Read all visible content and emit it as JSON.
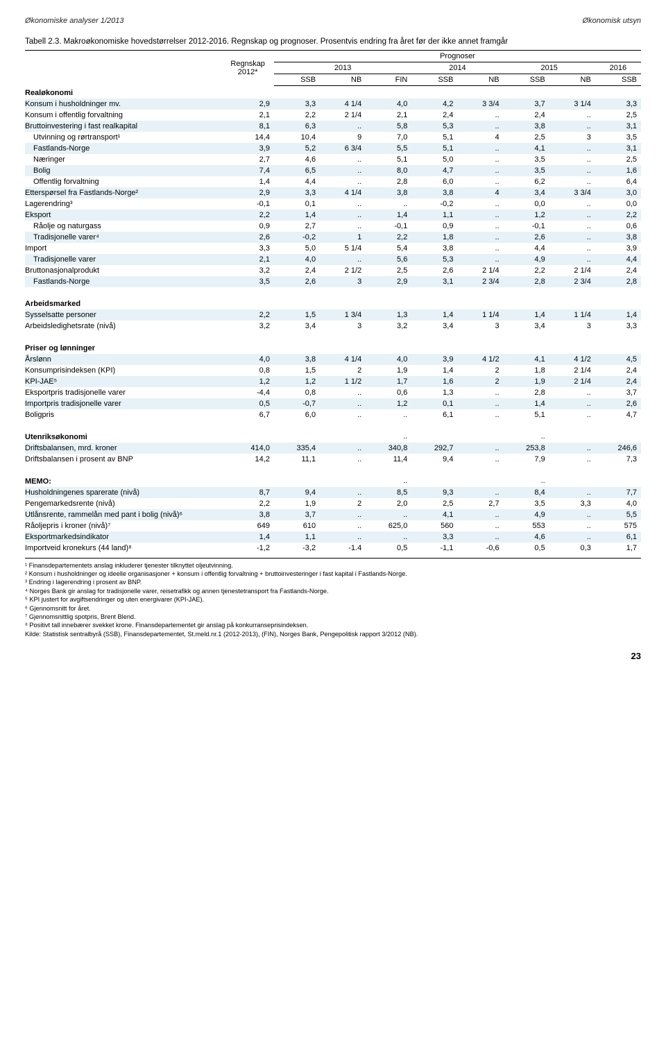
{
  "header": {
    "left": "Økonomiske analyser 1/2013",
    "right": "Økonomisk utsyn"
  },
  "caption": "Tabell 2.3. Makroøkonomiske hovedstørrelser 2012-2016. Regnskap og prognoser. Prosentvis endring fra året før der ikke annet framgår",
  "cols": {
    "regnskap": "Regnskap\n2012*",
    "prognoser": "Prognoser",
    "years": [
      "2013",
      "2014",
      "2015",
      "2016"
    ],
    "sub2013": [
      "SSB",
      "NB",
      "FIN"
    ],
    "sub2014": [
      "SSB",
      "NB"
    ],
    "sub2015": [
      "SSB",
      "NB"
    ],
    "sub2016": [
      "SSB"
    ]
  },
  "sections": [
    {
      "title": "Realøkonomi",
      "rows": [
        {
          "label": "Konsum i husholdninger mv.",
          "shade": true,
          "v": [
            "2,9",
            "3,3",
            "4 1/4",
            "4,0",
            "4,2",
            "3 3/4",
            "3,7",
            "3 1/4",
            "3,3"
          ]
        },
        {
          "label": "Konsum i offentlig forvaltning",
          "v": [
            "2,1",
            "2,2",
            "2 1/4",
            "2,1",
            "2,4",
            "..",
            "2,4",
            "..",
            "2,5"
          ]
        },
        {
          "label": "Bruttoinvestering i fast realkapital",
          "shade": true,
          "v": [
            "8,1",
            "6,3",
            "..",
            "5,8",
            "5,3",
            "..",
            "3,8",
            "..",
            "3,1"
          ]
        },
        {
          "label": "Utvinning og rørtransport¹",
          "indent": 1,
          "v": [
            "14,4",
            "10,4",
            "9",
            "7,0",
            "5,1",
            "4",
            "2,5",
            "3",
            "3,5"
          ]
        },
        {
          "label": "Fastlands-Norge",
          "indent": 1,
          "shade": true,
          "v": [
            "3,9",
            "5,2",
            "6 3/4",
            "5,5",
            "5,1",
            "..",
            "4,1",
            "..",
            "3,1"
          ]
        },
        {
          "label": "Næringer",
          "indent": 1,
          "v": [
            "2,7",
            "4,6",
            "..",
            "5,1",
            "5,0",
            "..",
            "3,5",
            "..",
            "2,5"
          ]
        },
        {
          "label": "Bolig",
          "indent": 1,
          "shade": true,
          "v": [
            "7,4",
            "6,5",
            "..",
            "8,0",
            "4,7",
            "..",
            "3,5",
            "..",
            "1,6"
          ]
        },
        {
          "label": "Offentlig forvaltning",
          "indent": 1,
          "v": [
            "1,4",
            "4,4",
            "..",
            "2,8",
            "6,0",
            "..",
            "6,2",
            "..",
            "6,4"
          ]
        },
        {
          "label": "Etterspørsel fra Fastlands-Norge²",
          "shade": true,
          "v": [
            "2,9",
            "3,3",
            "4 1/4",
            "3,8",
            "3,8",
            "4",
            "3,4",
            "3 3/4",
            "3,0"
          ]
        },
        {
          "label": "Lagerendring³",
          "v": [
            "-0,1",
            "0,1",
            "..",
            "..",
            "-0,2",
            "..",
            "0,0",
            "..",
            "0,0"
          ]
        },
        {
          "label": "Eksport",
          "shade": true,
          "v": [
            "2,2",
            "1,4",
            "..",
            "1,4",
            "1,1",
            "..",
            "1,2",
            "..",
            "2,2"
          ]
        },
        {
          "label": "Råolje og naturgass",
          "indent": 1,
          "v": [
            "0,9",
            "2,7",
            "..",
            "-0,1",
            "0,9",
            "..",
            "-0,1",
            "..",
            "0,6"
          ]
        },
        {
          "label": "Tradisjonelle varer⁴",
          "indent": 1,
          "shade": true,
          "v": [
            "2,6",
            "-0,2",
            "1",
            "2,2",
            "1,8",
            "..",
            "2,6",
            "..",
            "3,8"
          ]
        },
        {
          "label": "Import",
          "v": [
            "3,3",
            "5,0",
            "5 1/4",
            "5,4",
            "3,8",
            "..",
            "4,4",
            "..",
            "3,9"
          ]
        },
        {
          "label": "Tradisjonelle varer",
          "indent": 1,
          "shade": true,
          "v": [
            "2,1",
            "4,0",
            "..",
            "5,6",
            "5,3",
            "..",
            "4,9",
            "..",
            "4,4"
          ]
        },
        {
          "label": "Bruttonasjonalprodukt",
          "v": [
            "3,2",
            "2,4",
            "2 1/2",
            "2,5",
            "2,6",
            "2 1/4",
            "2,2",
            "2 1/4",
            "2,4"
          ]
        },
        {
          "label": "Fastlands-Norge",
          "indent": 1,
          "shade": true,
          "v": [
            "3,5",
            "2,6",
            "3",
            "2,9",
            "3,1",
            "2 3/4",
            "2,8",
            "2 3/4",
            "2,8"
          ]
        }
      ]
    },
    {
      "title": "Arbeidsmarked",
      "rows": [
        {
          "label": "Sysselsatte personer",
          "shade": true,
          "v": [
            "2,2",
            "1,5",
            "1 3/4",
            "1,3",
            "1,4",
            "1 1/4",
            "1,4",
            "1 1/4",
            "1,4"
          ]
        },
        {
          "label": "Arbeidsledighetsrate (nivå)",
          "v": [
            "3,2",
            "3,4",
            "3",
            "3,2",
            "3,4",
            "3",
            "3,4",
            "3",
            "3,3"
          ]
        }
      ]
    },
    {
      "title": "Priser og lønninger",
      "rows": [
        {
          "label": "Årslønn",
          "shade": true,
          "v": [
            "4,0",
            "3,8",
            "4 1/4",
            "4,0",
            "3,9",
            "4 1/2",
            "4,1",
            "4 1/2",
            "4,5"
          ]
        },
        {
          "label": "Konsumprisindeksen  (KPI)",
          "v": [
            "0,8",
            "1,5",
            "2",
            "1,9",
            "1,4",
            "2",
            "1,8",
            "2 1/4",
            "2,4"
          ]
        },
        {
          "label": "KPI-JAE⁵",
          "shade": true,
          "v": [
            "1,2",
            "1,2",
            "1 1/2",
            "1,7",
            "1,6",
            "2",
            "1,9",
            "2 1/4",
            "2,4"
          ]
        },
        {
          "label": "Eksportpris tradisjonelle varer",
          "v": [
            "-4,4",
            "0,8",
            "..",
            "0,6",
            "1,3",
            "..",
            "2,8",
            "..",
            "3,7"
          ]
        },
        {
          "label": "Importpris tradisjonelle varer",
          "shade": true,
          "v": [
            "0,5",
            "-0,7",
            "..",
            "1,2",
            "0,1",
            "..",
            "1,4",
            "..",
            "2,6"
          ]
        },
        {
          "label": "Boligpris",
          "v": [
            "6,7",
            "6,0",
            "..",
            "..",
            "6,1",
            "..",
            "5,1",
            "..",
            "4,7"
          ]
        }
      ]
    },
    {
      "title": "Utenriksøkonomi",
      "titlerow_v": [
        "",
        "",
        "",
        "..",
        "",
        "",
        "..",
        "",
        "",
        ".."
      ],
      "rows": [
        {
          "label": "Driftsbalansen, mrd. kroner",
          "shade": true,
          "v": [
            "414,0",
            "335,4",
            "..",
            "340,8",
            "292,7",
            "..",
            "253,8",
            "..",
            "246,6"
          ]
        },
        {
          "label": "Driftsbalansen i prosent av BNP",
          "v": [
            "14,2",
            "11,1",
            "..",
            "11,4",
            "9,4",
            "..",
            "7,9",
            "..",
            "7,3"
          ]
        }
      ]
    },
    {
      "title": "MEMO:",
      "titlerow_v": [
        "",
        "",
        "",
        "..",
        "",
        "",
        "..",
        "",
        "",
        ".."
      ],
      "rows": [
        {
          "label": "Husholdningenes sparerate (nivå)",
          "shade": true,
          "v": [
            "8,7",
            "9,4",
            "..",
            "8,5",
            "9,3",
            "..",
            "8,4",
            "..",
            "7,7"
          ]
        },
        {
          "label": "Pengemarkedsrente (nivå)",
          "v": [
            "2,2",
            "1,9",
            "2",
            "2,0",
            "2,5",
            "2,7",
            "3,5",
            "3,3",
            "4,0"
          ]
        },
        {
          "label": "Utlånsrente, rammelån med pant i bolig (nivå)⁶",
          "shade": true,
          "v": [
            "3,8",
            "3,7",
            "..",
            "..",
            "4,1",
            "..",
            "4,9",
            "..",
            "5,5"
          ]
        },
        {
          "label": "Råoljepris i kroner (nivå)⁷",
          "v": [
            "649",
            "610",
            "..",
            "625,0",
            "560",
            "..",
            "553",
            "..",
            "575"
          ]
        },
        {
          "label": "Eksportmarkedsindikator",
          "shade": true,
          "v": [
            "1,4",
            "1,1",
            "..",
            "..",
            "3,3",
            "..",
            "4,6",
            "..",
            "6,1"
          ]
        },
        {
          "label": "Importveid kronekurs (44 land)⁸",
          "v": [
            "-1,2",
            "-3,2",
            "-1.4",
            "0,5",
            "-1,1",
            "-0,6",
            "0,5",
            "0,3",
            "1,7"
          ]
        }
      ]
    }
  ],
  "footnotes": [
    "¹ Finansdepartementets anslag inkluderer tjenester tilknyttet oljeutvinning.",
    "² Konsum i husholdninger og ideelle organisasjoner + konsum i offentlig forvaltning + bruttoinvesteringer i fast kapital i Fastlands-Norge.",
    "³ Endring i lagerendring i prosent av BNP.",
    "⁴ Norges Bank gir anslag for tradisjonelle varer, reisetrafikk og annen tjenestetransport fra Fastlands-Norge.",
    "⁵ KPI justert for avgiftsendringer og uten energivarer (KPI-JAE).",
    "⁶ Gjennomsnitt for året.",
    "⁷ Gjennomsnittlig spotpris, Brent Blend.",
    "⁸ Positivt tall innebærer svekket krone. Finansdepartementet gir anslag på konkurranseprisindeksen.",
    "Kilde: Statistisk sentralbyrå (SSB), Finansdepartementet, St.meld.nr.1 (2012-2013), (FIN), Norges Bank, Pengepolitisk rapport 3/2012 (NB)."
  ],
  "pagenum": "23"
}
